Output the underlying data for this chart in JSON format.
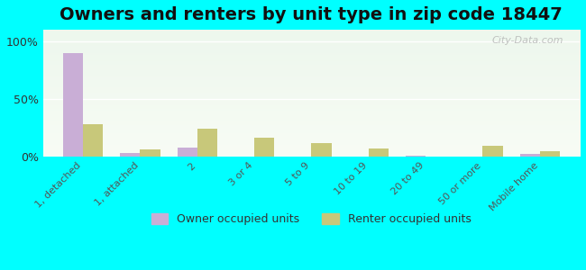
{
  "title": "Owners and renters by unit type in zip code 18447",
  "categories": [
    "1, detached",
    "1, attached",
    "2",
    "3 or 4",
    "5 to 9",
    "10 to 19",
    "20 to 49",
    "50 or more",
    "Mobile home"
  ],
  "owner_values": [
    90,
    3,
    8,
    0,
    0,
    0,
    0.5,
    0,
    2
  ],
  "renter_values": [
    28,
    6,
    24,
    16,
    12,
    7,
    0,
    9,
    5
  ],
  "owner_color": "#c9aed6",
  "renter_color": "#c8c87a",
  "background_color": "#00ffff",
  "plot_bg_top": "#e8f4e8",
  "plot_bg_bottom": "#f5faf0",
  "title_fontsize": 14,
  "yticks": [
    0,
    50,
    100
  ],
  "ylim": [
    0,
    110
  ],
  "watermark": "City-Data.com",
  "legend_owner": "Owner occupied units",
  "legend_renter": "Renter occupied units"
}
